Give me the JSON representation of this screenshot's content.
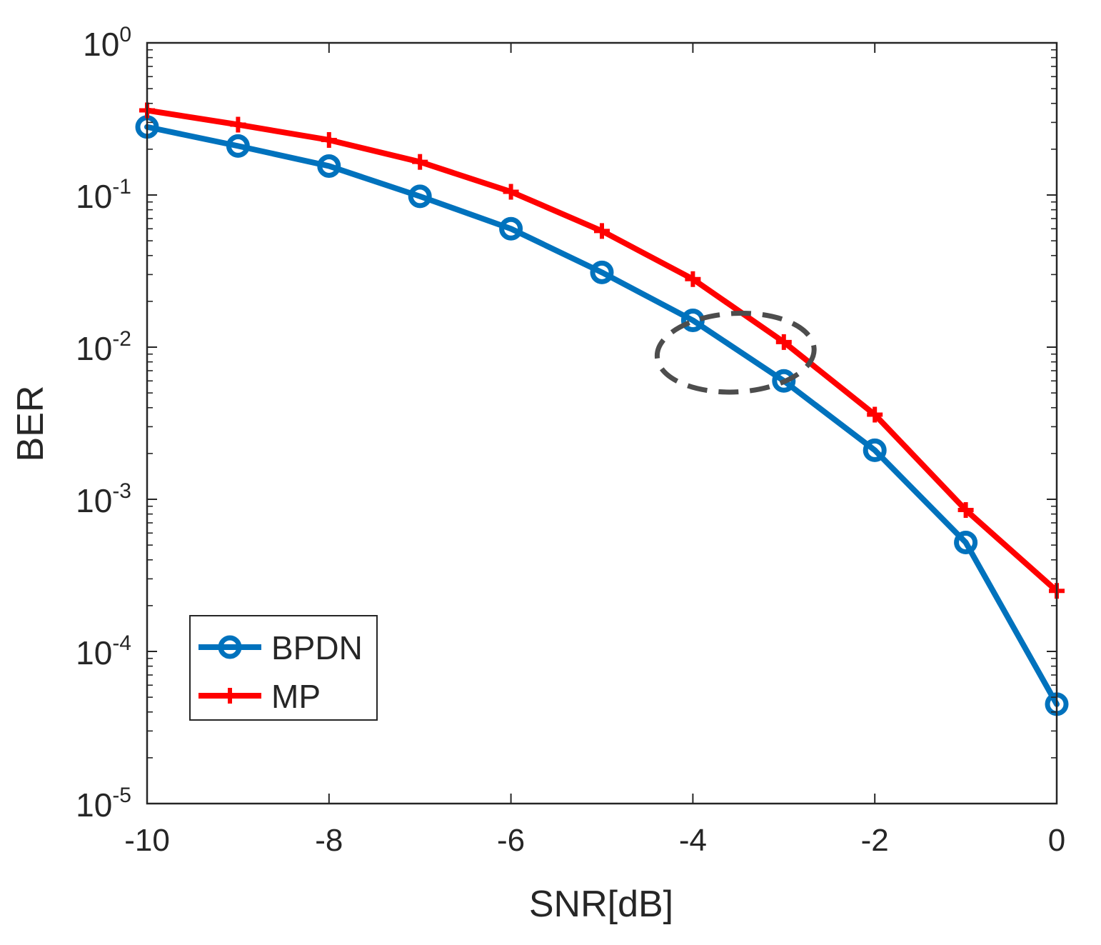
{
  "chart_data": {
    "type": "line",
    "title": "",
    "xlabel": "SNR[dB]",
    "ylabel": "BER",
    "y_scale": "log",
    "xlim": [
      -10,
      0
    ],
    "ylim": [
      1e-05,
      1
    ],
    "grid": false,
    "legend_position": "bottom-left",
    "x_ticks": [
      -10,
      -8,
      -6,
      -4,
      -2,
      0
    ],
    "x_tick_labels": [
      "-10",
      "-8",
      "-6",
      "-4",
      "-2",
      "0"
    ],
    "y_ticks": [
      {
        "value": 1,
        "base": "10",
        "exponent": "0"
      },
      {
        "value": 0.1,
        "base": "10",
        "exponent": "-1"
      },
      {
        "value": 0.01,
        "base": "10",
        "exponent": "-2"
      },
      {
        "value": 0.001,
        "base": "10",
        "exponent": "-3"
      },
      {
        "value": 0.0001,
        "base": "10",
        "exponent": "-4"
      },
      {
        "value": 1e-05,
        "base": "10",
        "exponent": "-5"
      }
    ],
    "x": [
      -10,
      -9,
      -8,
      -7,
      -6,
      -5,
      -4,
      -3,
      -2,
      -1,
      0
    ],
    "series": [
      {
        "name": "BPDN",
        "color": "#0072BD",
        "marker": "circle",
        "values": [
          0.28,
          0.21,
          0.155,
          0.098,
          0.06,
          0.031,
          0.015,
          0.006,
          0.0021,
          0.00052,
          4.5e-05
        ]
      },
      {
        "name": "MP",
        "color": "#FF0000",
        "marker": "plus",
        "values": [
          0.36,
          0.29,
          0.23,
          0.165,
          0.105,
          0.058,
          0.028,
          0.0108,
          0.0036,
          0.00085,
          0.00025
        ]
      }
    ],
    "annotations": [
      {
        "type": "dashed-ellipse",
        "color": "#4D4D4D",
        "center_x": -3.53,
        "center_y": 0.0092,
        "note": "highlights gap between curves at -4 to -3 dB"
      }
    ]
  }
}
